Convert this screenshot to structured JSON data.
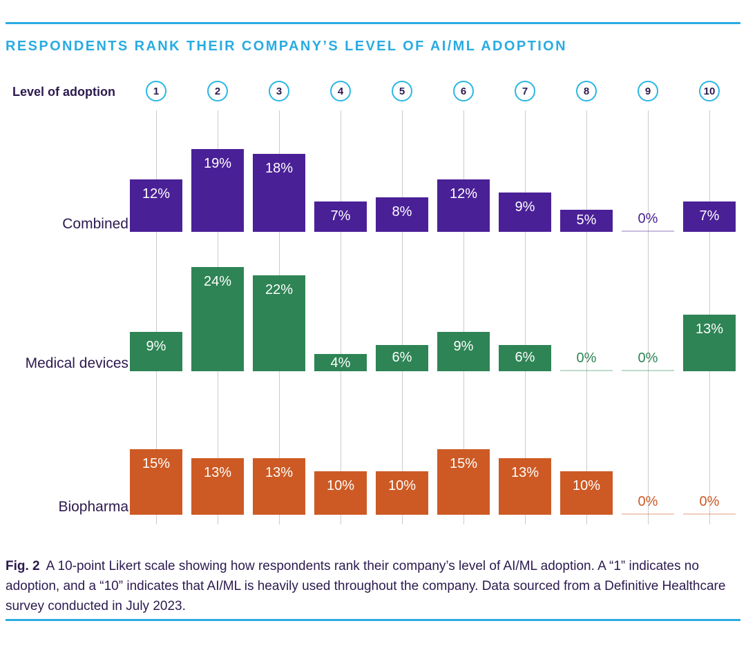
{
  "colors": {
    "accent_cyan": "#29abe2",
    "circle_ring_cyan": "#2bb7e4",
    "dark_text": "#2b1a4e",
    "gridline_gray": "#cbcbcb",
    "combined_purple": "#4a2097",
    "medical_green": "#2e8455",
    "biopharma_orange": "#cd5a24"
  },
  "title": "RESPONDENTS RANK THEIR COMPANY’S LEVEL OF AI/ML ADOPTION",
  "axis_label": "Level of adoption",
  "chart_data": {
    "type": "bar",
    "title": "Respondents rank their company’s level of AI/ML adoption",
    "xlabel": "Level of adoption",
    "ylabel": "",
    "categories": [
      "1",
      "2",
      "3",
      "4",
      "5",
      "6",
      "7",
      "8",
      "9",
      "10"
    ],
    "value_suffix": "%",
    "ylim": [
      0,
      25
    ],
    "grid": "vertical-only",
    "legend_position": "row-labels-left",
    "series": [
      {
        "name": "Combined",
        "color": "#4a2097",
        "values": [
          12,
          19,
          18,
          7,
          8,
          12,
          9,
          5,
          0,
          7
        ]
      },
      {
        "name": "Medical devices",
        "color": "#2e8455",
        "values": [
          9,
          24,
          22,
          4,
          6,
          9,
          6,
          0,
          0,
          13
        ]
      },
      {
        "name": "Biopharma",
        "color": "#cd5a24",
        "values": [
          15,
          13,
          13,
          10,
          10,
          15,
          13,
          10,
          0,
          0
        ]
      }
    ]
  },
  "caption": {
    "prefix": "Fig. 2",
    "text": "A 10-point Likert scale showing how respondents rank their company’s level of AI/ML adoption. A “1” indicates no adoption, and a “10” indicates that AI/ML is heavily used throughout the company. Data sourced from a Definitive Healthcare survey conducted in July 2023."
  }
}
